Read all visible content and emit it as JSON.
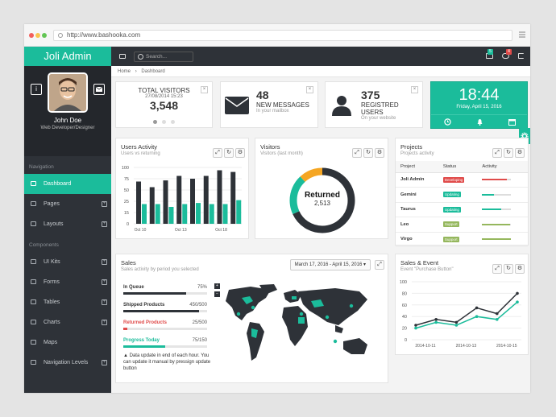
{
  "browser": {
    "url": "http://www.bashooka.com"
  },
  "app": {
    "title": "Joli Admin"
  },
  "profile": {
    "name": "John Doe",
    "role": "Web Developer/Designer",
    "left_btn": "i"
  },
  "sidebar": {
    "nav_heading": "Navigation",
    "nav": [
      {
        "label": "Dashboard"
      },
      {
        "label": "Pages"
      },
      {
        "label": "Layouts"
      }
    ],
    "comp_heading": "Components",
    "components": [
      {
        "label": "UI Kits"
      },
      {
        "label": "Forms"
      },
      {
        "label": "Tables"
      },
      {
        "label": "Charts"
      },
      {
        "label": "Maps"
      },
      {
        "label": "Navigation Levels"
      }
    ]
  },
  "topbar": {
    "search_placeholder": "Search...",
    "mail_badge": "5",
    "msg_badge": "4",
    "badge_colors": {
      "mail": "#1bbc9b",
      "msg": "#e04b4a"
    }
  },
  "breadcrumb": {
    "home": "Home",
    "current": "Dashboard"
  },
  "widgets": {
    "visitors": {
      "label": "TOTAL VISITORS",
      "date": "27/08/2014 15:23",
      "value": "3,548"
    },
    "messages": {
      "value": "48",
      "label": "NEW MESSAGES",
      "sub": "In your mailbox"
    },
    "users": {
      "value": "375",
      "label": "REGISTRED USERS",
      "sub": "On your website"
    },
    "clock": {
      "time": "18:44",
      "date": "Friday, April 15, 2016"
    }
  },
  "users_activity": {
    "title": "Users Activity",
    "sub": "Users vs returning"
  },
  "visitors_panel": {
    "title": "Visitors",
    "sub": "Visitors (last month)",
    "center_label": "Returned",
    "center_value": "2,513"
  },
  "projects": {
    "title": "Projects",
    "sub": "Projects activity",
    "headers": {
      "project": "Project",
      "status": "Status",
      "activity": "Activity"
    },
    "rows": [
      {
        "name": "Joli Admin",
        "status": "Developing",
        "color": "#e04b4a",
        "activity": 0.85
      },
      {
        "name": "Gemini",
        "status": "Updating",
        "color": "#1bbc9b",
        "activity": 0.4
      },
      {
        "name": "Taurus",
        "status": "Updating",
        "color": "#1bbc9b",
        "activity": 0.65
      },
      {
        "name": "Leo",
        "status": "Support",
        "color": "#95b75d",
        "activity": 0.95
      },
      {
        "name": "Virgo",
        "status": "Support",
        "color": "#95b75d",
        "activity": 0.98
      }
    ]
  },
  "sales": {
    "title": "Sales",
    "sub": "Sales activity by period you selected",
    "daterange": "March 17, 2016 - April 15, 2016",
    "items": [
      {
        "label": "In Queue",
        "value": "75%",
        "progress": 0.75,
        "color": "#2e3238",
        "label_color": "#333"
      },
      {
        "label": "Shipped Products",
        "value": "450/500",
        "progress": 0.9,
        "color": "#2e3238",
        "label_color": "#333"
      },
      {
        "label": "Returned Products",
        "value": "25/500",
        "progress": 0.05,
        "color": "#e04b4a",
        "label_color": "#e04b4a"
      },
      {
        "label": "Progress Today",
        "value": "75/150",
        "progress": 0.5,
        "color": "#1bbc9b",
        "label_color": "#1bbc9b"
      }
    ],
    "note": "Data update in end of each hour. You can update it manual by pressign update button"
  },
  "sales_event": {
    "title": "Sales & Event",
    "sub": "Event \"Purchase Button\""
  },
  "chart_data": [
    {
      "type": "bar",
      "categories": [
        "Oct 10",
        "",
        "",
        "Oct 13",
        "",
        "",
        "Oct 18",
        ""
      ],
      "series": [
        {
          "values": [
            75,
            65,
            77,
            85,
            80,
            85,
            95,
            92
          ],
          "color": "#2e3238"
        },
        {
          "values": [
            35,
            35,
            30,
            35,
            37,
            35,
            35,
            42
          ],
          "color": "#1bbc9b"
        }
      ],
      "y_ticks": [
        "0",
        "15",
        "25",
        "50",
        "75",
        "100"
      ],
      "ylim": [
        0,
        100
      ]
    },
    {
      "type": "pie",
      "values": [
        68,
        20,
        12
      ],
      "colors": [
        "#2e3238",
        "#1bbc9b",
        "#f5a623"
      ]
    },
    {
      "type": "line",
      "categories": [
        "2014-10-11",
        "",
        "2014-10-13",
        "",
        "2014-10-15",
        ""
      ],
      "series": [
        {
          "values": [
            25,
            35,
            30,
            55,
            45,
            80
          ],
          "color": "#2e3238"
        },
        {
          "values": [
            20,
            30,
            25,
            40,
            35,
            65
          ],
          "color": "#1bbc9b"
        }
      ],
      "y_ticks": [
        "0",
        "20",
        "40",
        "60",
        "80",
        "100"
      ],
      "ylim": [
        0,
        100
      ]
    }
  ]
}
